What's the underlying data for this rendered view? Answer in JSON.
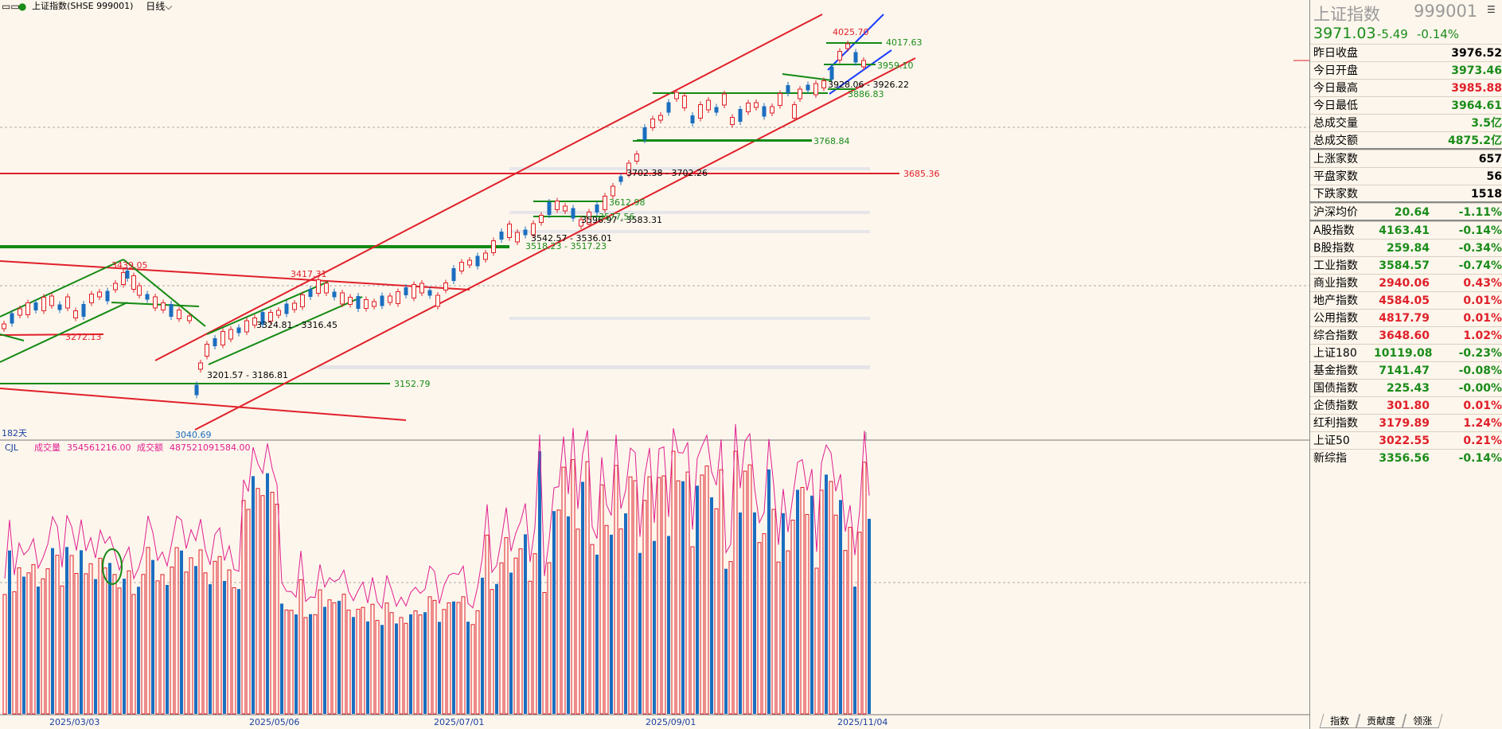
{
  "title_bar": {
    "icon": "layout-icon",
    "title": "上证指数(SHSE 999001)",
    "period": "日线"
  },
  "main_chart": {
    "days_label": "182天",
    "price_labels": [
      {
        "text": "4025.70",
        "color": "#e0202a"
      },
      {
        "text": "4017.63",
        "color": "#1a8c1a"
      },
      {
        "text": "3959.10",
        "color": "#1a8c1a"
      },
      {
        "text": "3928.06 - 3926.22",
        "color": "#000000"
      },
      {
        "text": "3886.83",
        "color": "#1a8c1a"
      },
      {
        "text": "3768.84",
        "color": "#1a8c1a"
      },
      {
        "text": "3685.36",
        "color": "#e0202a"
      },
      {
        "text": "3702.38 - 3702.26",
        "color": "#000000"
      },
      {
        "text": "3612.98",
        "color": "#1a8c1a"
      },
      {
        "text": "3596.97 - 3583.31",
        "color": "#000000"
      },
      {
        "text": "3577.56",
        "color": "#1a8c1a"
      },
      {
        "text": "3542.57 - 3536.01",
        "color": "#000000"
      },
      {
        "text": "3518.23 - 3517.23",
        "color": "#1a8c1a"
      },
      {
        "text": "3439.05",
        "color": "#e0202a"
      },
      {
        "text": "3417.31",
        "color": "#e0202a"
      },
      {
        "text": "3324.81 - 3316.45",
        "color": "#000000"
      },
      {
        "text": "3272.13",
        "color": "#e0202a"
      },
      {
        "text": "3201.57 - 3186.81",
        "color": "#000000"
      },
      {
        "text": "3152.79",
        "color": "#1a8c1a"
      },
      {
        "text": "3040.69",
        "color": "#1a6ebf"
      }
    ]
  },
  "volume_chart": {
    "indicator": "CJL",
    "volume_label": "成交量",
    "volume_value": "354561216.00",
    "amount_label": "成交额",
    "amount_value": "487521091584.00"
  },
  "x_axis": {
    "dates": [
      "2025/03/03",
      "2025/05/06",
      "2025/07/01",
      "2025/09/01",
      "2025/11/04"
    ]
  },
  "quote_panel": {
    "name": "上证指数",
    "code": "999001",
    "last": "3971.03",
    "change": "-5.49",
    "change_pct": "-0.14%",
    "stats": [
      {
        "label": "昨日收盘",
        "value": "3976.52",
        "color": "#000000"
      },
      {
        "label": "今日开盘",
        "value": "3973.46",
        "color": "#1a8c1a"
      },
      {
        "label": "今日最高",
        "value": "3985.88",
        "color": "#e0202a"
      },
      {
        "label": "今日最低",
        "value": "3964.61",
        "color": "#1a8c1a"
      },
      {
        "label": "总成交量",
        "value": "3.5亿",
        "color": "#1a8c1a"
      },
      {
        "label": "总成交额",
        "value": "4875.2亿",
        "color": "#1a8c1a"
      }
    ],
    "breadth": [
      {
        "label": "上涨家数",
        "value": "657",
        "color": "#000000"
      },
      {
        "label": "平盘家数",
        "value": "56",
        "color": "#000000"
      },
      {
        "label": "下跌家数",
        "value": "1518",
        "color": "#000000"
      }
    ],
    "avg": {
      "label": "沪深均价",
      "value": "20.64",
      "pct": "-1.11%",
      "color": "#1a8c1a"
    },
    "indices": [
      {
        "label": "A股指数",
        "value": "4163.41",
        "pct": "-0.14%",
        "color": "#1a8c1a"
      },
      {
        "label": "B股指数",
        "value": "259.84",
        "pct": "-0.34%",
        "color": "#1a8c1a"
      },
      {
        "label": "工业指数",
        "value": "3584.57",
        "pct": "-0.74%",
        "color": "#1a8c1a"
      },
      {
        "label": "商业指数",
        "value": "2940.06",
        "pct": "0.43%",
        "color": "#e0202a"
      },
      {
        "label": "地产指数",
        "value": "4584.05",
        "pct": "0.01%",
        "color": "#e0202a"
      },
      {
        "label": "公用指数",
        "value": "4817.79",
        "pct": "0.01%",
        "color": "#e0202a"
      },
      {
        "label": "综合指数",
        "value": "3648.60",
        "pct": "1.02%",
        "color": "#e0202a"
      },
      {
        "label": "上证180",
        "value": "10119.08",
        "pct": "-0.23%",
        "color": "#1a8c1a"
      },
      {
        "label": "基金指数",
        "value": "7141.47",
        "pct": "-0.08%",
        "color": "#1a8c1a"
      },
      {
        "label": "国债指数",
        "value": "225.43",
        "pct": "-0.00%",
        "color": "#1a8c1a"
      },
      {
        "label": "企债指数",
        "value": "301.80",
        "pct": "0.01%",
        "color": "#e0202a"
      },
      {
        "label": "红利指数",
        "value": "3179.89",
        "pct": "1.24%",
        "color": "#e0202a"
      },
      {
        "label": "上证50",
        "value": "3022.55",
        "pct": "0.21%",
        "color": "#e0202a"
      },
      {
        "label": "新综指",
        "value": "3356.56",
        "pct": "-0.14%",
        "color": "#1a8c1a"
      }
    ],
    "tabs": [
      "指数",
      "贡献度",
      "领涨"
    ]
  },
  "colors": {
    "up": "#e0202a",
    "down": "#1a6ebf",
    "green": "#1a8c1a",
    "background": "#fdf6ec"
  }
}
